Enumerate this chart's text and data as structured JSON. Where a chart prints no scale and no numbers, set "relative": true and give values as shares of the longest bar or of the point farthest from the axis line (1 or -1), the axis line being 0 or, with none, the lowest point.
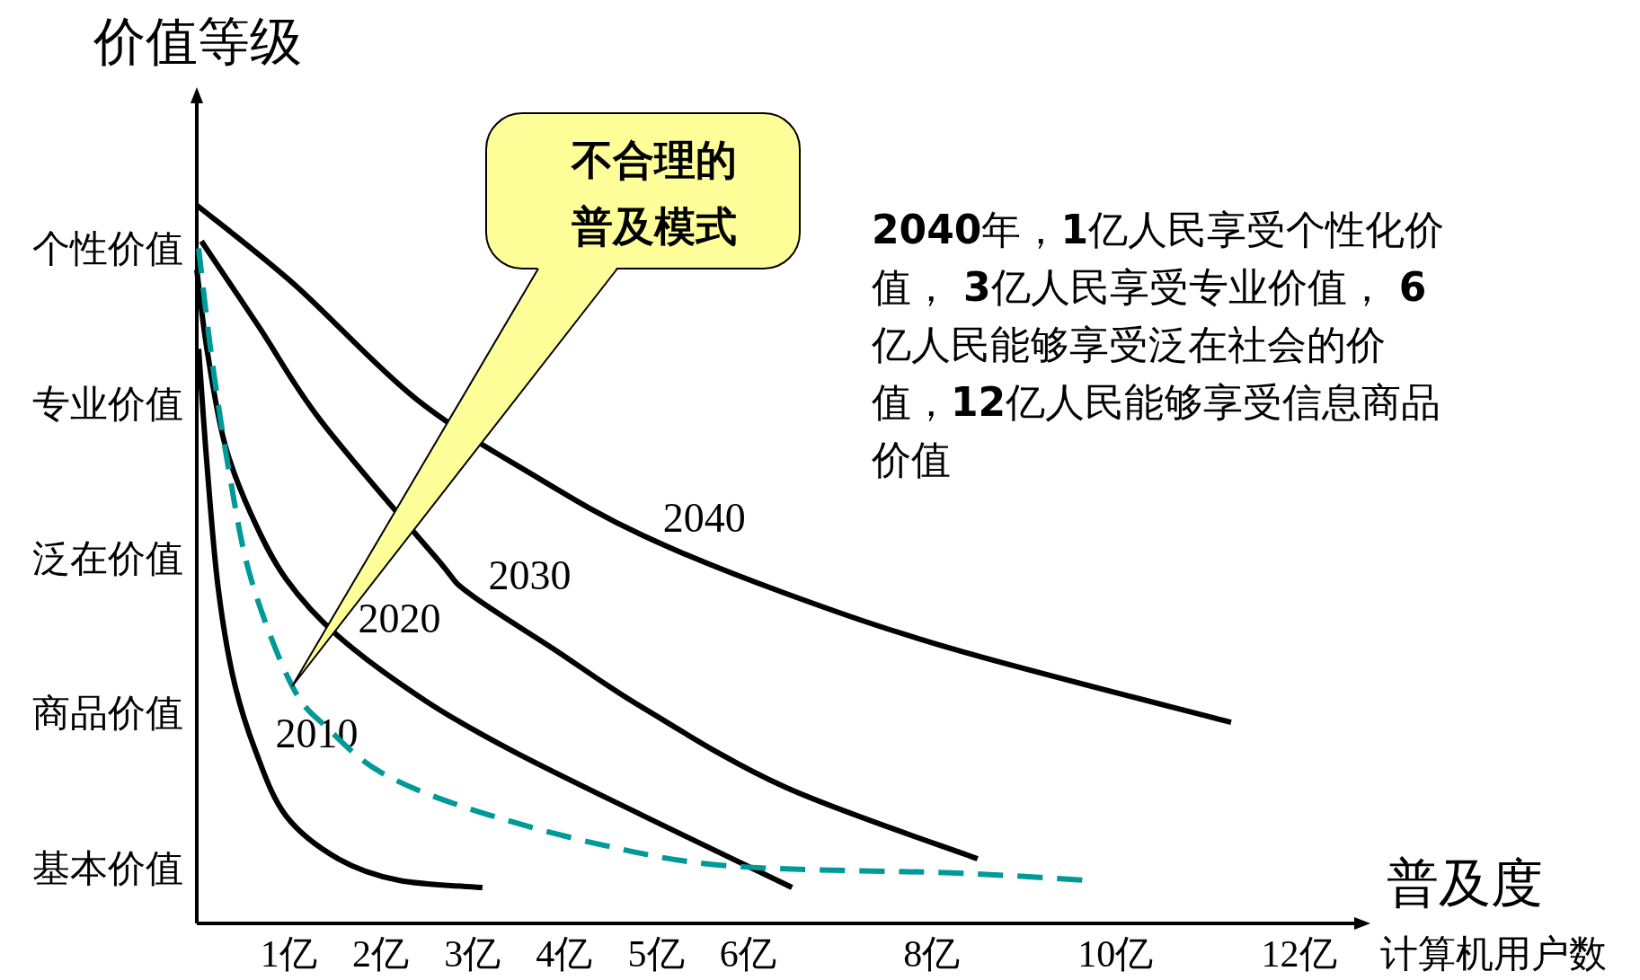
{
  "chart_data": {
    "type": "line",
    "xlabel": "普及度",
    "ylabel": "价值等级",
    "relative": true,
    "xlim": [
      0,
      12.64
    ],
    "xticks": [
      {
        "value": 1,
        "label": "1亿"
      },
      {
        "value": 2,
        "label": "2亿"
      },
      {
        "value": 3,
        "label": "3亿"
      },
      {
        "value": 4,
        "label": "4亿"
      },
      {
        "value": 5,
        "label": "5亿"
      },
      {
        "value": 6,
        "label": "6亿"
      },
      {
        "value": 8,
        "label": "8亿"
      },
      {
        "value": 10,
        "label": "10亿"
      },
      {
        "value": 12,
        "label": "12亿"
      }
    ],
    "grid": false,
    "legend": false,
    "marker": "none",
    "series": [
      {
        "name": "2040",
        "color": "#000000",
        "line_style": "solid",
        "x": [
          0,
          1.06,
          2.39,
          3.72,
          4.86,
          6.4,
          8.29,
          11.26
        ],
        "values": [
          1,
          0.89,
          0.73,
          0.62,
          0.54,
          0.46,
          0.38,
          0.28
        ]
      },
      {
        "name": "2030",
        "color": "#000000",
        "line_style": "solid",
        "x": [
          0.05,
          0.68,
          1.35,
          2.6,
          2.96,
          3.91,
          4.86,
          6.4,
          8.5
        ],
        "values": [
          0.95,
          0.83,
          0.7,
          0.51,
          0.46,
          0.38,
          0.3,
          0.19,
          0.09
        ]
      },
      {
        "name": "2020",
        "color": "#000000",
        "line_style": "solid",
        "x": [
          0,
          0.11,
          0.3,
          0.59,
          0.97,
          1.54,
          2.49,
          3.44,
          4.86,
          6.48
        ],
        "values": [
          0.91,
          0.8,
          0.67,
          0.57,
          0.48,
          0.4,
          0.31,
          0.24,
          0.15,
          0.05
        ]
      },
      {
        "name": "2010",
        "color": "#000000",
        "line_style": "solid",
        "x": [
          0.02,
          0.11,
          0.23,
          0.4,
          0.64,
          0.97,
          1.54,
          2.2,
          3.11
        ],
        "values": [
          0.8,
          0.64,
          0.47,
          0.34,
          0.24,
          0.15,
          0.09,
          0.06,
          0.05
        ]
      },
      {
        "color": "#009999",
        "line_style": "dashed",
        "x": [
          0.02,
          0.16,
          0.35,
          0.59,
          1.04,
          1.44,
          2.01,
          2.96,
          4.39,
          5.81,
          8.29,
          9.69
        ],
        "values": [
          0.94,
          0.79,
          0.63,
          0.48,
          0.33,
          0.27,
          0.21,
          0.16,
          0.11,
          0.08,
          0.07,
          0.06
        ]
      }
    ],
    "annotations": [
      "不合理的普及模式",
      "**2040**年，**1**亿人民享受个性化价值， **3**亿人民享受专业价值， **6**亿人民能够享受泛在社会的价值，**12**亿人民能够享受信息商品价值",
      "计算机用户数",
      "基本价值",
      "商品价值",
      "泛在价值",
      "专业价值",
      "个性价值"
    ]
  }
}
